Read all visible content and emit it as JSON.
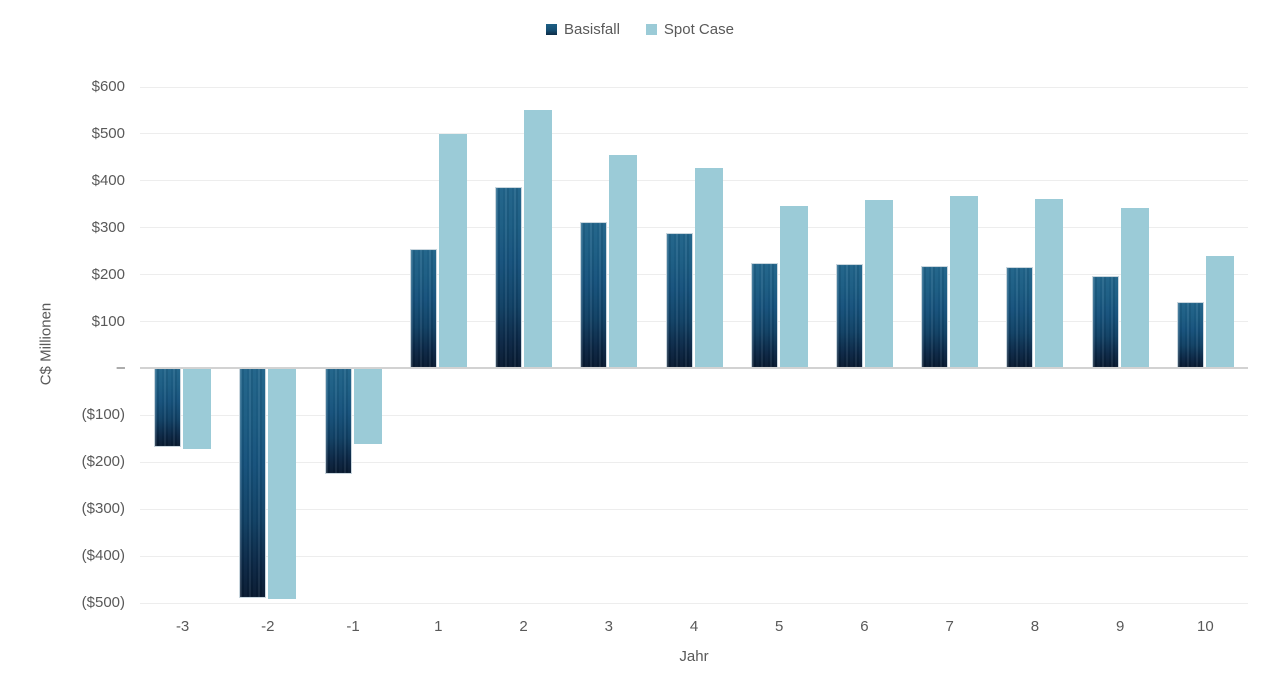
{
  "colors": {
    "basisfall_top": "#21648a",
    "basisfall_bottom": "#081a30",
    "spot_case": "#9bcbd7",
    "gridline": "#ededed",
    "zero_axis": "#d2d2d2",
    "label_text": "#595959"
  },
  "chart_data": {
    "type": "bar",
    "title": "",
    "xlabel": "Jahr",
    "ylabel": "C$ Millionen",
    "categories": [
      "-3",
      "-2",
      "-1",
      "1",
      "2",
      "3",
      "4",
      "5",
      "6",
      "7",
      "8",
      "9",
      "10"
    ],
    "series": [
      {
        "name": "Basisfall",
        "swatch": "dark",
        "values": [
          -168,
          -489,
          -225,
          254,
          387,
          313,
          288,
          225,
          223,
          218,
          216,
          198,
          141
        ]
      },
      {
        "name": "Spot Case",
        "swatch": "light",
        "values": [
          -172,
          -492,
          -161,
          500,
          551,
          455,
          427,
          347,
          360,
          368,
          362,
          341,
          239
        ]
      }
    ],
    "ylim": [
      -500,
      600
    ],
    "grid": true,
    "legend_position": "top-center",
    "yticks": [
      {
        "value": 600,
        "label": "$600"
      },
      {
        "value": 500,
        "label": "$500"
      },
      {
        "value": 400,
        "label": "$400"
      },
      {
        "value": 300,
        "label": "$300"
      },
      {
        "value": 200,
        "label": "$200"
      },
      {
        "value": 100,
        "label": "$100"
      },
      {
        "value": 0,
        "label": "–"
      },
      {
        "value": -100,
        "label": "($100)"
      },
      {
        "value": -200,
        "label": "($200)"
      },
      {
        "value": -300,
        "label": "($300)"
      },
      {
        "value": -400,
        "label": "($400)"
      },
      {
        "value": -500,
        "label": "($500)"
      }
    ]
  }
}
